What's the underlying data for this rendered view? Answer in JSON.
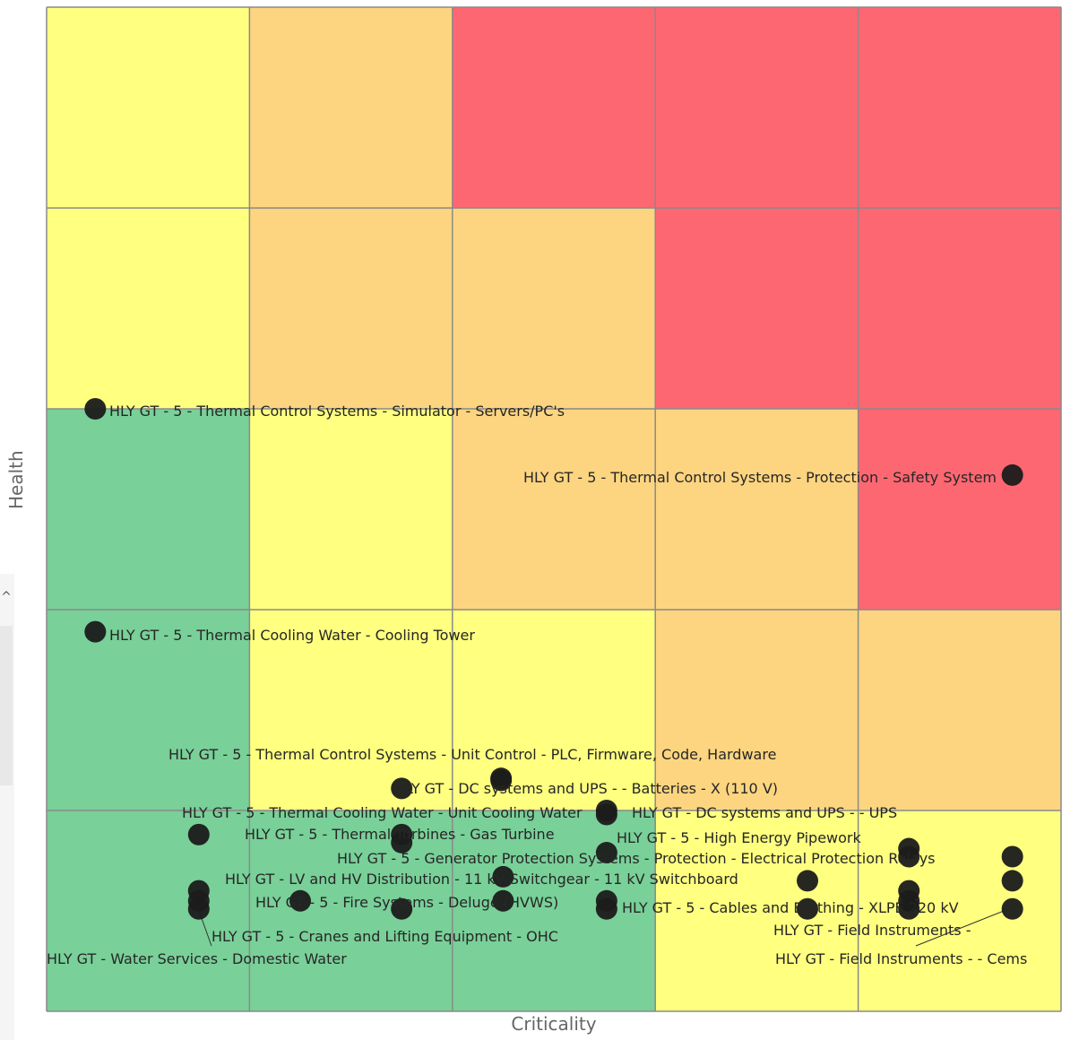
{
  "chart_data": {
    "type": "scatter",
    "xlabel": "Criticality",
    "ylabel": "Health",
    "xlim": [
      0,
      5
    ],
    "ylim": [
      0,
      5
    ],
    "grid": true,
    "cell_colors": [
      [
        "#ffff80",
        "#fdd580",
        "#fd6772",
        "#fd6772",
        "#fd6772"
      ],
      [
        "#ffff80",
        "#fdd580",
        "#fdd580",
        "#fd6772",
        "#fd6772"
      ],
      [
        "#79d098",
        "#ffff80",
        "#fdd580",
        "#fdd580",
        "#fd6772"
      ],
      [
        "#79d098",
        "#ffff80",
        "#ffff80",
        "#fdd580",
        "#fdd580"
      ],
      [
        "#79d098",
        "#79d098",
        "#79d098",
        "#ffff80",
        "#ffff80"
      ]
    ],
    "points": [
      {
        "x": 0.24,
        "y": 3.0,
        "label": "HLY GT - 5 - Thermal Control Systems - Simulator - Servers/PC's"
      },
      {
        "x": 4.76,
        "y": 2.67,
        "label": "HLY GT - 5 - Thermal Control Systems - Protection - Safety System"
      },
      {
        "x": 0.24,
        "y": 1.89,
        "label": "HLY GT - 5 - Thermal Cooling Water - Cooling Tower"
      },
      {
        "x": 2.24,
        "y": 1.16,
        "label": "HLY GT - 5 - Thermal Control Systems - Unit Control - PLC, Firmware, Code, Hardware"
      },
      {
        "x": 1.75,
        "y": 1.11,
        "label": "HLY GT - DC systems and UPS - - Batteries - X (110 V)"
      },
      {
        "x": 2.76,
        "y": 1.0,
        "label": "HLY GT - DC systems and UPS - - UPS"
      },
      {
        "x": 0.75,
        "y": 0.88,
        "label": "HLY GT - 5 - Thermal Cooling Water - Unit Cooling Water"
      },
      {
        "x": 1.75,
        "y": 0.88,
        "label": "HLY GT - 5 - Thermal Turbines - Gas Turbine"
      },
      {
        "x": 4.25,
        "y": 0.81,
        "label": "HLY GT - 5 - High Energy Pipework"
      },
      {
        "x": 2.76,
        "y": 0.79,
        "label": "HLY GT - 5 - Generator Protection Systems - Protection - Electrical Protection Relays"
      },
      {
        "x": 2.25,
        "y": 0.67,
        "label": "HLY GT - LV and HV Distribution - 11 kV Switchgear - 11 kV Switchboard"
      },
      {
        "x": 1.25,
        "y": 0.55,
        "label": "HLY GT - 5 - Fire Systems - Deluge (HVWS)"
      },
      {
        "x": 2.76,
        "y": 0.51,
        "label": "HLY GT - 5 - Cables and Earthing - XLPE 220 kV"
      },
      {
        "x": 4.76,
        "y": 0.51,
        "label": "HLY GT - Field Instruments -"
      },
      {
        "x": 0.75,
        "y": 0.51,
        "label": "HLY GT - 5 - Cranes and Lifting Equipment - OHC"
      },
      {
        "x": 0.75,
        "y": 0.55,
        "label": "HLY GT - Water Services - Domestic Water"
      },
      {
        "x": 4.25,
        "y": 0.51,
        "label": "HLY GT - Field Instruments - - Cems"
      },
      {
        "x": 2.24,
        "y": 1.15,
        "label": ""
      },
      {
        "x": 2.76,
        "y": 0.98,
        "label": ""
      },
      {
        "x": 1.75,
        "y": 0.84,
        "label": ""
      },
      {
        "x": 4.25,
        "y": 0.77,
        "label": ""
      },
      {
        "x": 4.76,
        "y": 0.77,
        "label": ""
      },
      {
        "x": 3.75,
        "y": 0.65,
        "label": ""
      },
      {
        "x": 4.76,
        "y": 0.65,
        "label": ""
      },
      {
        "x": 0.75,
        "y": 0.6,
        "label": ""
      },
      {
        "x": 2.25,
        "y": 0.55,
        "label": ""
      },
      {
        "x": 2.76,
        "y": 0.55,
        "label": ""
      },
      {
        "x": 4.25,
        "y": 0.6,
        "label": ""
      },
      {
        "x": 4.25,
        "y": 0.55,
        "label": ""
      },
      {
        "x": 3.75,
        "y": 0.51,
        "label": ""
      },
      {
        "x": 1.75,
        "y": 0.51,
        "label": ""
      }
    ]
  }
}
